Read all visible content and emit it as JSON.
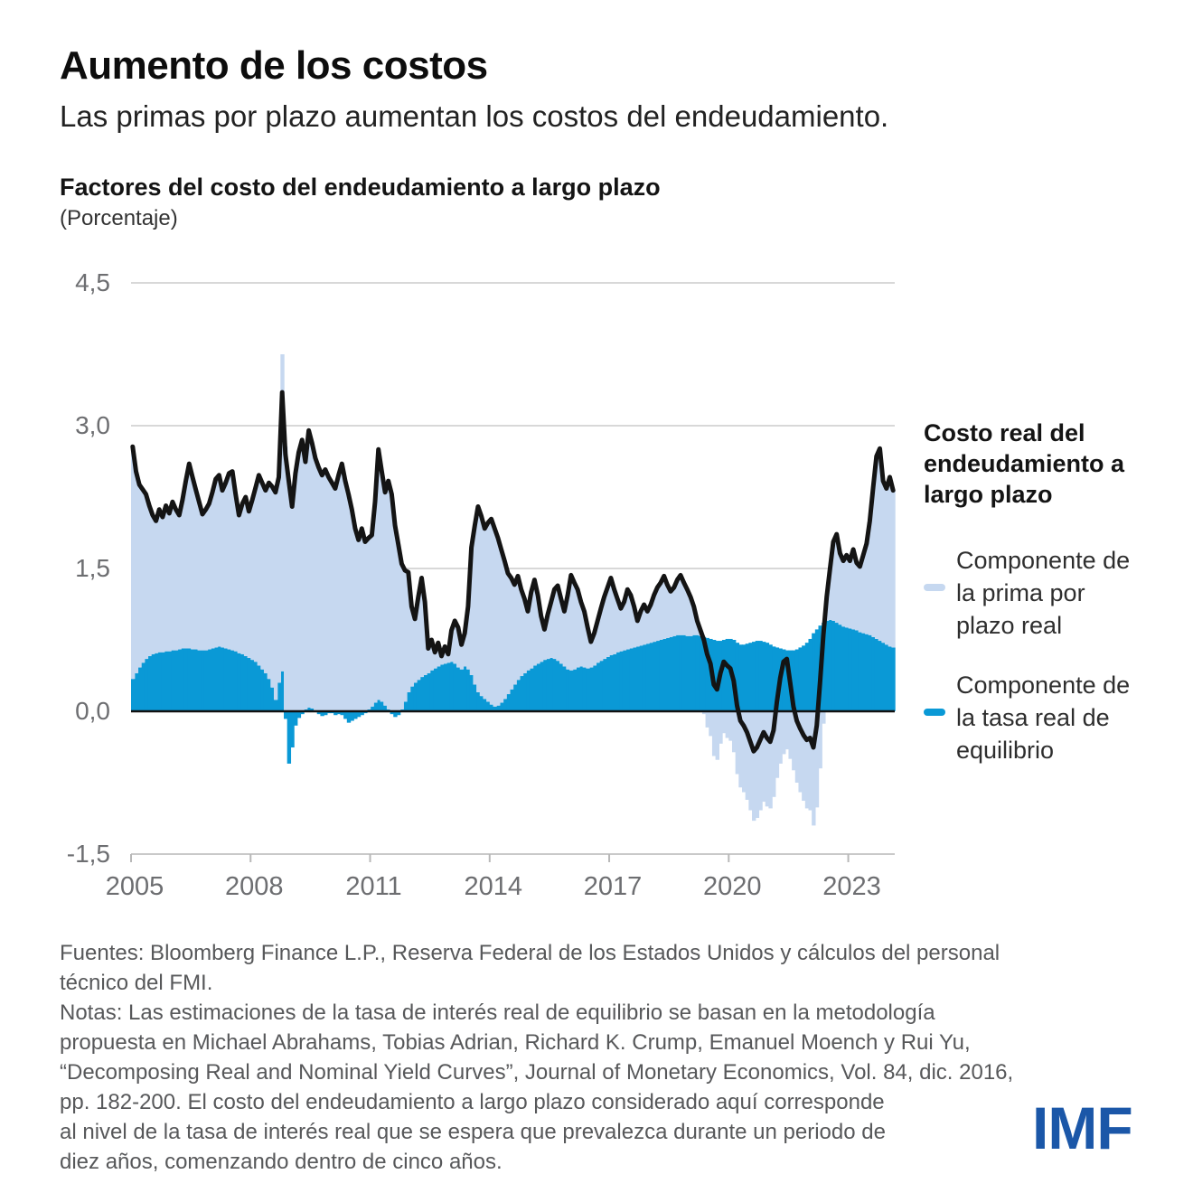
{
  "header": {
    "title": "Aumento de los costos",
    "subtitle": "Las primas por plazo aumentan los costos del endeudamiento."
  },
  "chart": {
    "heading": "Factores del costo del endeudamiento a largo plazo",
    "unit_label": "(Porcentaje)"
  },
  "legend": {
    "line_label": "Costo real del endeudamiento a largo plazo",
    "items": [
      {
        "label": "Componente de la prima por plazo real",
        "color": "#c6d8f0"
      },
      {
        "label": "Componente de la tasa real de equilibrio",
        "color": "#0a99d6"
      }
    ]
  },
  "footer": {
    "sources": "Fuentes: Bloomberg Finance L.P., Reserva Federal de los Estados Unidos y cálculos del personal\ntécnico del FMI.",
    "notes": "Notas: Las estimaciones de la tasa de interés real de equilibrio se basan en la metodología\npropuesta en Michael Abrahams, Tobias Adrian, Richard K. Crump, Emanuel Moench y Rui Yu,\n“Decomposing Real and Nominal Yield Curves”, Journal of Monetary Economics, Vol. 84, dic. 2016,\npp. 182-200. El costo del endeudamiento a largo plazo considerado aquí corresponde\nal nivel de la tasa de interés real que se espera que prevalezca durante un periodo de\ndiez años, comenzando dentro de cinco años.",
    "logo_text": "IMF"
  },
  "chart_data": {
    "type": "bar",
    "overlay": "line",
    "start": "2005-01",
    "freq": "monthly",
    "title": "Factores del costo del endeudamiento a largo plazo",
    "ylabel": "Porcentaje",
    "ylim": [
      -1.5,
      4.5
    ],
    "grid": "horizontal",
    "legend_position": "right",
    "colors": {
      "equilibrium": "#0a99d6",
      "term_premium": "#c6d8f0",
      "line": "#141414",
      "grid": "#d8d8d8",
      "axis_text": "#6d6e71",
      "zero_line": "#111111"
    },
    "yticks": [
      {
        "v": 4.5,
        "label": "4,5"
      },
      {
        "v": 3.0,
        "label": "3,0"
      },
      {
        "v": 1.5,
        "label": "1,5"
      },
      {
        "v": 0.0,
        "label": "0,0"
      },
      {
        "v": -1.5,
        "label": "-1,5"
      }
    ],
    "xticks": [
      {
        "year": 2005,
        "label": "2005"
      },
      {
        "year": 2008,
        "label": "2008"
      },
      {
        "year": 2011,
        "label": "2011"
      },
      {
        "year": 2014,
        "label": "2014"
      },
      {
        "year": 2017,
        "label": "2017"
      },
      {
        "year": 2020,
        "label": "2020"
      },
      {
        "year": 2023,
        "label": "2023"
      }
    ],
    "series": [
      {
        "name": "Componente de la tasa real de equilibrio",
        "kind": "bar",
        "color": "#0a99d6",
        "values": [
          0.34,
          0.4,
          0.46,
          0.51,
          0.55,
          0.58,
          0.6,
          0.61,
          0.62,
          0.62,
          0.63,
          0.63,
          0.64,
          0.64,
          0.65,
          0.66,
          0.66,
          0.66,
          0.65,
          0.65,
          0.64,
          0.64,
          0.64,
          0.65,
          0.66,
          0.67,
          0.68,
          0.67,
          0.66,
          0.65,
          0.64,
          0.63,
          0.61,
          0.6,
          0.58,
          0.56,
          0.54,
          0.52,
          0.48,
          0.44,
          0.4,
          0.34,
          0.25,
          0.12,
          0.3,
          0.42,
          -0.08,
          -0.55,
          -0.38,
          -0.15,
          -0.07,
          -0.03,
          0.02,
          0.04,
          0.03,
          0.01,
          -0.03,
          -0.05,
          -0.04,
          -0.02,
          -0.02,
          -0.04,
          -0.03,
          -0.04,
          -0.08,
          -0.12,
          -0.1,
          -0.08,
          -0.06,
          -0.04,
          -0.02,
          0.02,
          0.05,
          0.09,
          0.12,
          0.1,
          0.06,
          0.02,
          -0.03,
          -0.06,
          -0.04,
          0.02,
          0.1,
          0.2,
          0.26,
          0.3,
          0.33,
          0.36,
          0.38,
          0.4,
          0.43,
          0.45,
          0.47,
          0.49,
          0.5,
          0.51,
          0.52,
          0.5,
          0.46,
          0.44,
          0.47,
          0.44,
          0.38,
          0.28,
          0.2,
          0.16,
          0.13,
          0.1,
          0.07,
          0.05,
          0.06,
          0.09,
          0.13,
          0.18,
          0.23,
          0.28,
          0.33,
          0.37,
          0.4,
          0.43,
          0.45,
          0.48,
          0.5,
          0.52,
          0.54,
          0.55,
          0.56,
          0.55,
          0.53,
          0.5,
          0.47,
          0.44,
          0.43,
          0.44,
          0.46,
          0.47,
          0.46,
          0.45,
          0.46,
          0.48,
          0.51,
          0.53,
          0.55,
          0.57,
          0.59,
          0.6,
          0.62,
          0.63,
          0.64,
          0.65,
          0.66,
          0.67,
          0.68,
          0.69,
          0.7,
          0.71,
          0.72,
          0.73,
          0.74,
          0.75,
          0.76,
          0.77,
          0.78,
          0.79,
          0.8,
          0.8,
          0.8,
          0.79,
          0.79,
          0.8,
          0.8,
          0.79,
          0.78,
          0.77,
          0.76,
          0.75,
          0.74,
          0.74,
          0.75,
          0.76,
          0.76,
          0.75,
          0.72,
          0.7,
          0.7,
          0.71,
          0.72,
          0.73,
          0.74,
          0.74,
          0.73,
          0.72,
          0.7,
          0.68,
          0.67,
          0.66,
          0.65,
          0.64,
          0.64,
          0.64,
          0.65,
          0.67,
          0.69,
          0.72,
          0.76,
          0.82,
          0.86,
          0.9,
          0.93,
          0.95,
          0.96,
          0.95,
          0.93,
          0.91,
          0.89,
          0.88,
          0.87,
          0.86,
          0.85,
          0.83,
          0.82,
          0.81,
          0.8,
          0.78,
          0.76,
          0.74,
          0.72,
          0.7,
          0.68,
          0.67
        ]
      },
      {
        "name": "Componente de la prima por plazo real",
        "kind": "bar",
        "color": "#c6d8f0",
        "values": [
          2.44,
          2.12,
          1.92,
          1.82,
          1.73,
          1.58,
          1.46,
          1.39,
          1.5,
          1.42,
          1.53,
          1.45,
          1.56,
          1.48,
          1.41,
          1.56,
          1.76,
          1.94,
          1.81,
          1.68,
          1.56,
          1.43,
          1.48,
          1.53,
          1.64,
          1.77,
          1.8,
          1.65,
          1.74,
          1.85,
          1.88,
          1.65,
          1.45,
          1.58,
          1.67,
          1.54,
          1.68,
          1.83,
          2.0,
          1.96,
          1.92,
          2.06,
          2.11,
          2.18,
          2.16,
          3.33,
          2.78,
          2.42,
          2.15,
          2.5,
          2.72,
          2.85,
          2.6,
          2.91,
          2.79,
          2.65,
          2.56,
          2.48,
          2.54,
          2.46,
          2.4,
          2.34,
          2.48,
          2.6,
          2.42,
          2.28,
          2.12,
          1.92,
          1.8,
          1.92,
          1.78,
          1.8,
          1.8,
          2.11,
          2.63,
          2.42,
          2.24,
          2.4,
          2.28,
          1.95,
          1.75,
          1.53,
          1.38,
          1.26,
          0.84,
          0.67,
          0.87,
          1.04,
          0.77,
          0.26,
          0.32,
          0.17,
          0.25,
          0.09,
          0.18,
          0.09,
          0.33,
          0.45,
          0.42,
          0.26,
          0.35,
          0.66,
          1.34,
          1.67,
          1.95,
          1.89,
          1.79,
          1.88,
          1.95,
          1.87,
          1.76,
          1.61,
          1.45,
          1.27,
          1.17,
          1.05,
          1.09,
          0.91,
          0.78,
          0.62,
          0.8,
          0.9,
          0.72,
          0.48,
          0.32,
          0.47,
          0.59,
          0.73,
          0.79,
          0.68,
          0.58,
          0.78,
          1.0,
          0.91,
          0.82,
          0.68,
          0.59,
          0.43,
          0.27,
          0.34,
          0.44,
          0.55,
          0.65,
          0.73,
          0.81,
          0.68,
          0.56,
          0.45,
          0.51,
          0.63,
          0.56,
          0.43,
          0.27,
          0.36,
          0.42,
          0.34,
          0.4,
          0.49,
          0.56,
          0.6,
          0.66,
          0.56,
          0.48,
          0.51,
          0.58,
          0.63,
          0.55,
          0.49,
          0.41,
          0.3,
          0.15,
          0.06,
          -0.03,
          -0.17,
          -0.26,
          -0.47,
          -0.51,
          -0.34,
          -0.23,
          -0.28,
          -0.31,
          -0.43,
          -0.66,
          -0.8,
          -0.85,
          -0.93,
          -1.04,
          -1.15,
          -1.12,
          -1.04,
          -0.95,
          -1.0,
          -1.02,
          -0.9,
          -0.7,
          -0.55,
          -0.45,
          -0.4,
          -0.5,
          -0.62,
          -0.75,
          -0.85,
          -0.94,
          -1.02,
          -1.04,
          -1.2,
          -1.01,
          -0.6,
          -0.13,
          0.25,
          0.54,
          0.83,
          0.93,
          0.75,
          0.69,
          0.76,
          0.71,
          0.84,
          0.71,
          0.69,
          0.82,
          0.95,
          1.2,
          1.57,
          1.92,
          2.02,
          1.7,
          1.64,
          1.78,
          1.65
        ]
      },
      {
        "name": "Costo real del endeudamiento a largo plazo",
        "kind": "line",
        "color": "#141414",
        "values": [
          2.78,
          2.52,
          2.38,
          2.33,
          2.28,
          2.16,
          2.06,
          2.0,
          2.12,
          2.04,
          2.16,
          2.08,
          2.2,
          2.12,
          2.06,
          2.22,
          2.42,
          2.6,
          2.46,
          2.33,
          2.2,
          2.07,
          2.12,
          2.18,
          2.3,
          2.44,
          2.48,
          2.32,
          2.4,
          2.5,
          2.52,
          2.28,
          2.06,
          2.18,
          2.25,
          2.1,
          2.22,
          2.35,
          2.48,
          2.4,
          2.32,
          2.4,
          2.36,
          2.3,
          2.46,
          3.35,
          2.7,
          2.42,
          2.15,
          2.5,
          2.72,
          2.85,
          2.62,
          2.95,
          2.82,
          2.66,
          2.56,
          2.48,
          2.54,
          2.46,
          2.4,
          2.34,
          2.48,
          2.6,
          2.42,
          2.28,
          2.12,
          1.92,
          1.8,
          1.92,
          1.78,
          1.82,
          1.85,
          2.2,
          2.75,
          2.52,
          2.3,
          2.42,
          2.28,
          1.95,
          1.75,
          1.55,
          1.48,
          1.46,
          1.1,
          0.97,
          1.2,
          1.4,
          1.15,
          0.66,
          0.75,
          0.62,
          0.72,
          0.58,
          0.68,
          0.6,
          0.85,
          0.95,
          0.88,
          0.7,
          0.82,
          1.1,
          1.72,
          1.95,
          2.15,
          2.05,
          1.92,
          1.98,
          2.02,
          1.92,
          1.82,
          1.7,
          1.58,
          1.45,
          1.4,
          1.33,
          1.42,
          1.28,
          1.18,
          1.05,
          1.25,
          1.38,
          1.22,
          1.0,
          0.86,
          1.02,
          1.15,
          1.28,
          1.32,
          1.18,
          1.05,
          1.22,
          1.43,
          1.35,
          1.28,
          1.15,
          1.05,
          0.88,
          0.73,
          0.82,
          0.95,
          1.08,
          1.2,
          1.3,
          1.4,
          1.28,
          1.18,
          1.08,
          1.15,
          1.28,
          1.22,
          1.1,
          0.95,
          1.05,
          1.12,
          1.05,
          1.12,
          1.22,
          1.3,
          1.35,
          1.42,
          1.33,
          1.26,
          1.3,
          1.38,
          1.43,
          1.35,
          1.28,
          1.2,
          1.1,
          0.95,
          0.85,
          0.75,
          0.6,
          0.5,
          0.28,
          0.23,
          0.4,
          0.52,
          0.48,
          0.45,
          0.32,
          0.06,
          -0.1,
          -0.15,
          -0.22,
          -0.32,
          -0.42,
          -0.38,
          -0.3,
          -0.22,
          -0.28,
          -0.32,
          -0.2,
          0.1,
          0.35,
          0.52,
          0.55,
          0.3,
          0.05,
          -0.1,
          -0.18,
          -0.25,
          -0.3,
          -0.28,
          -0.38,
          -0.15,
          0.3,
          0.8,
          1.2,
          1.5,
          1.78,
          1.86,
          1.66,
          1.58,
          1.64,
          1.58,
          1.7,
          1.56,
          1.52,
          1.64,
          1.76,
          2.0,
          2.35,
          2.68,
          2.76,
          2.42,
          2.34,
          2.46,
          2.32
        ]
      }
    ]
  }
}
